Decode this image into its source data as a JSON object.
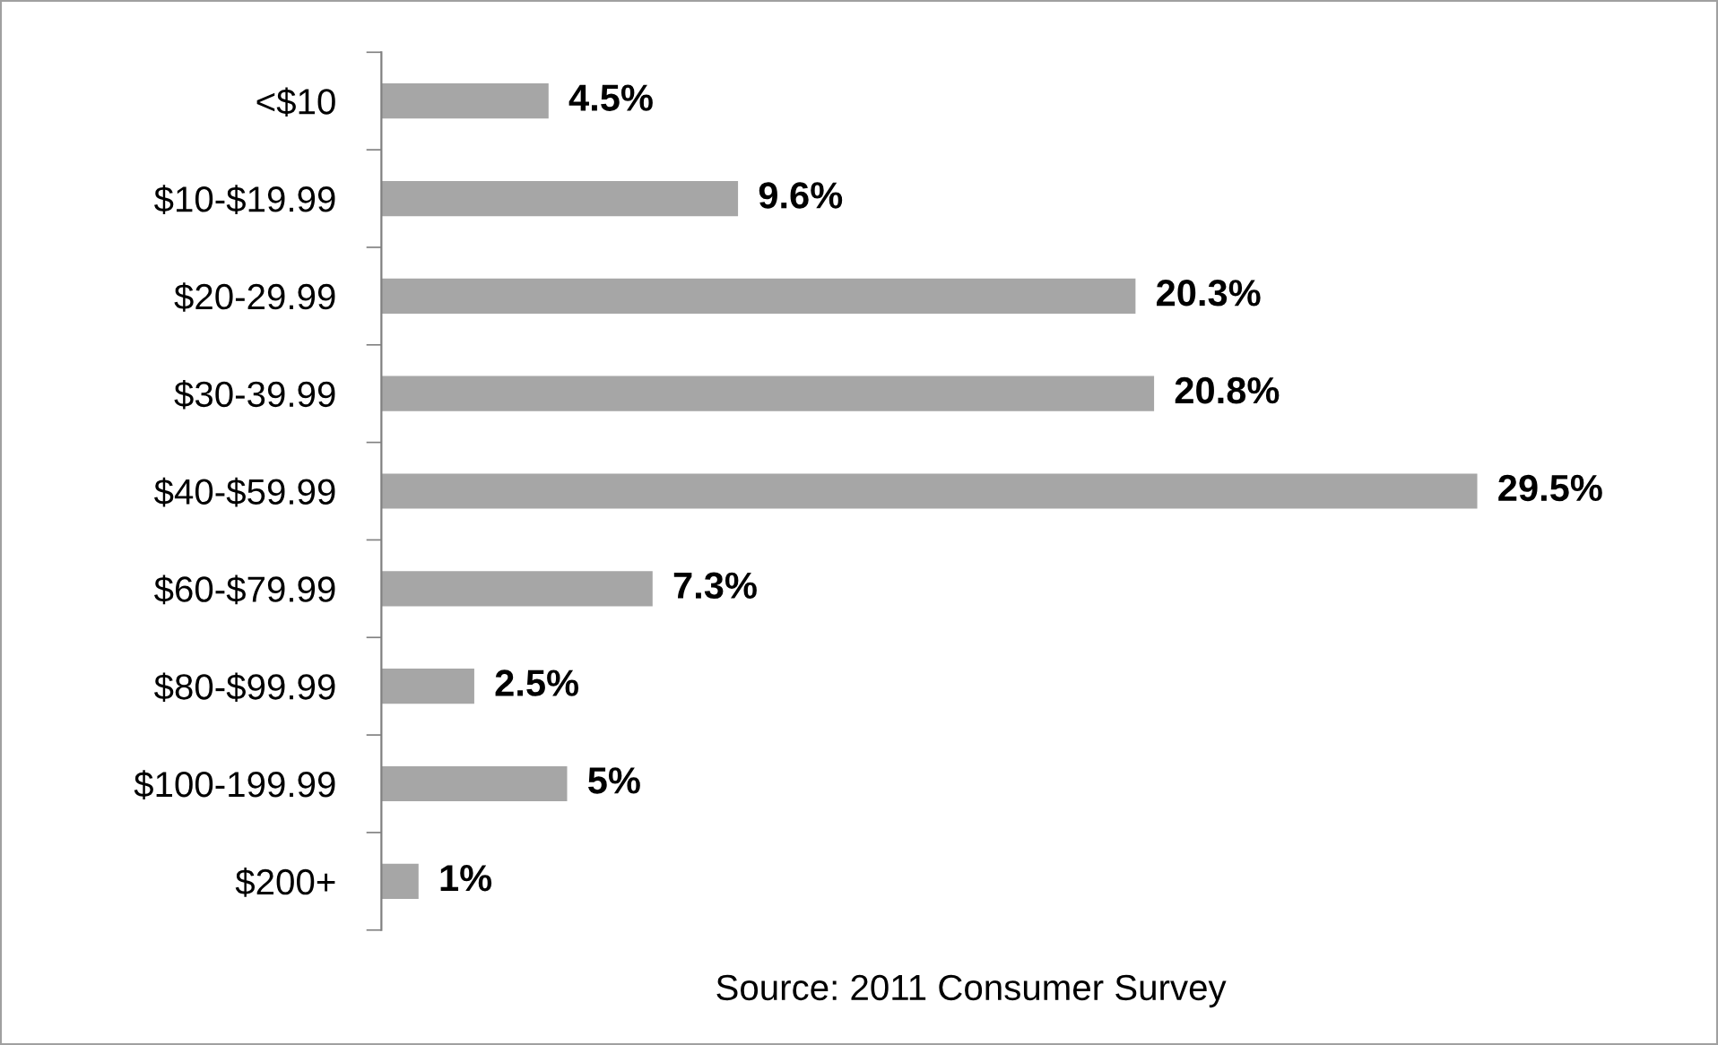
{
  "chart_data": {
    "type": "bar",
    "orientation": "horizontal",
    "categories": [
      "<$10",
      "$10-$19.99",
      "$20-29.99",
      "$30-39.99",
      "$40-$59.99",
      "$60-$79.99",
      "$80-$99.99",
      "$100-199.99",
      "$200+"
    ],
    "values": [
      4.5,
      9.6,
      20.3,
      20.8,
      29.5,
      7.3,
      2.5,
      5,
      1
    ],
    "value_labels": [
      "4.5%",
      "9.6%",
      "20.3%",
      "20.8%",
      "29.5%",
      "7.3%",
      "2.5%",
      "5%",
      "1%"
    ],
    "color": "#a6a6a6",
    "grid": false,
    "legend": false,
    "annotations": [
      "Source: 2011 Consumer Survey"
    ]
  }
}
